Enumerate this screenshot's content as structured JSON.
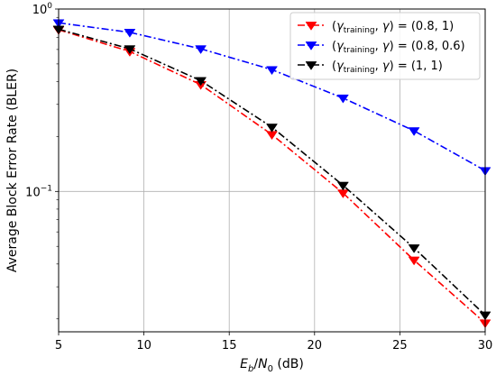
{
  "chart_data": {
    "type": "line",
    "xlabel": "E_b/N_0 (dB)",
    "ylabel": "Average Block Error Rate (BLER)",
    "xlim": [
      5,
      30
    ],
    "ylim": [
      0.017,
      1.0
    ],
    "yscale": "log",
    "grid": true,
    "legend_position": "top-right",
    "x_ticks": [
      5,
      10,
      15,
      20,
      25,
      30
    ],
    "y_ticks": [
      {
        "value": 1,
        "label_base": "10",
        "label_exp": "0"
      },
      {
        "value": 0.1,
        "label_base": "10",
        "label_exp": "−1"
      }
    ],
    "x": [
      5,
      9.17,
      13.33,
      17.5,
      21.67,
      25.83,
      30
    ],
    "series": [
      {
        "name": "(γ_training, γ) = (0.8, 1)",
        "legend": {
          "prefix": "(",
          "gamma": "γ",
          "sub": "training",
          "mid": ", ",
          "gamma2": "γ",
          "suffix": ") = (0.8, 1)"
        },
        "color": "#ff0000",
        "values": [
          0.77,
          0.585,
          0.385,
          0.205,
          0.098,
          0.042,
          0.019
        ]
      },
      {
        "name": "(γ_training, γ) = (0.8, 0.6)",
        "legend": {
          "prefix": "(",
          "gamma": "γ",
          "sub": "training",
          "mid": ", ",
          "gamma2": "γ",
          "suffix": ") = (0.8, 0.6)"
        },
        "color": "#0000ff",
        "values": [
          0.84,
          0.745,
          0.605,
          0.465,
          0.325,
          0.215,
          0.13
        ]
      },
      {
        "name": "(γ_training, γ) = (1, 1)",
        "legend": {
          "prefix": "(",
          "gamma": "γ",
          "sub": "training",
          "mid": ", ",
          "gamma2": "γ",
          "suffix": ") = (1, 1)"
        },
        "color": "#000000",
        "values": [
          0.775,
          0.605,
          0.405,
          0.225,
          0.108,
          0.049,
          0.021
        ]
      }
    ]
  }
}
